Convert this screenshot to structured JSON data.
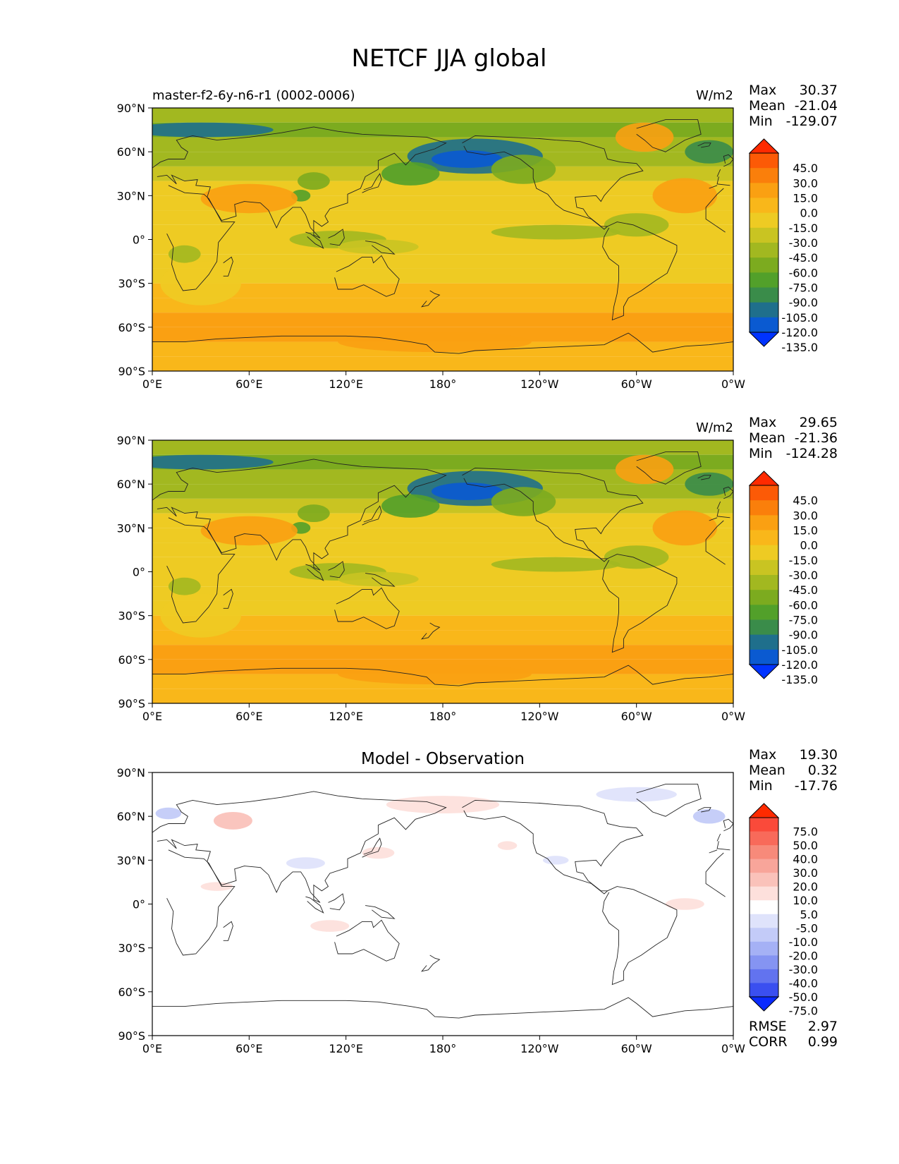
{
  "title": "NETCF JJA global",
  "chart_data": [
    {
      "type": "heatmap",
      "subtitle_left": "master-f2-6y-n6-r1 (0002-0006)",
      "subtitle_center": "",
      "units": "W/m2",
      "stats": [
        {
          "label": "Max",
          "value": "30.37"
        },
        {
          "label": "Mean",
          "value": "-21.04"
        },
        {
          "label": "Min",
          "value": "-129.07"
        }
      ],
      "colorbar": {
        "levels": [
          "45.0",
          "30.0",
          "15.0",
          "0.0",
          "-15.0",
          "-30.0",
          "-45.0",
          "-60.0",
          "-75.0",
          "-90.0",
          "-105.0",
          "-120.0",
          "-135.0"
        ],
        "colors": [
          "#ff2a00",
          "#fc5a06",
          "#fa7f0b",
          "#faa012",
          "#f9b71a",
          "#eecb23",
          "#c9c422",
          "#a2b820",
          "#7cab1f",
          "#52a02a",
          "#3a8c4a",
          "#1f6f8c",
          "#0a5ad1",
          "#0033ff"
        ]
      },
      "x_ticks": [
        "0°E",
        "60°E",
        "120°E",
        "180°",
        "120°W",
        "60°W",
        "0°W"
      ],
      "y_ticks": [
        "90°N",
        "60°N",
        "30°N",
        "0°",
        "30°S",
        "60°S",
        "90°S"
      ],
      "zonal_mean_profile": {
        "lat": [
          90,
          80,
          70,
          60,
          50,
          40,
          30,
          20,
          10,
          0,
          -10,
          -20,
          -30,
          -40,
          -50,
          -60,
          -70,
          -80,
          -90
        ],
        "value": [
          -40,
          -75,
          -60,
          -50,
          -55,
          -25,
          -15,
          -20,
          -30,
          -30,
          -20,
          -15,
          -20,
          -10,
          0,
          5,
          -5,
          -10,
          -15
        ]
      }
    },
    {
      "type": "heatmap",
      "subtitle_left": "",
      "subtitle_center": "",
      "units": "W/m2",
      "stats": [
        {
          "label": "Max",
          "value": "29.65"
        },
        {
          "label": "Mean",
          "value": "-21.36"
        },
        {
          "label": "Min",
          "value": "-124.28"
        }
      ],
      "colorbar": {
        "levels": [
          "45.0",
          "30.0",
          "15.0",
          "0.0",
          "-15.0",
          "-30.0",
          "-45.0",
          "-60.0",
          "-75.0",
          "-90.0",
          "-105.0",
          "-120.0",
          "-135.0"
        ],
        "colors": [
          "#ff2a00",
          "#fc5a06",
          "#fa7f0b",
          "#faa012",
          "#f9b71a",
          "#eecb23",
          "#c9c422",
          "#a2b820",
          "#7cab1f",
          "#52a02a",
          "#3a8c4a",
          "#1f6f8c",
          "#0a5ad1",
          "#0033ff"
        ]
      },
      "x_ticks": [
        "0°E",
        "60°E",
        "120°E",
        "180°",
        "120°W",
        "60°W",
        "0°W"
      ],
      "y_ticks": [
        "90°N",
        "60°N",
        "30°N",
        "0°",
        "30°S",
        "60°S",
        "90°S"
      ],
      "zonal_mean_profile": {
        "lat": [
          90,
          80,
          70,
          60,
          50,
          40,
          30,
          20,
          10,
          0,
          -10,
          -20,
          -30,
          -40,
          -50,
          -60,
          -70,
          -80,
          -90
        ],
        "value": [
          -40,
          -75,
          -60,
          -50,
          -55,
          -25,
          -15,
          -20,
          -30,
          -30,
          -20,
          -15,
          -20,
          -10,
          0,
          5,
          -5,
          -10,
          -15
        ]
      }
    },
    {
      "type": "heatmap",
      "subtitle_left": "",
      "subtitle_center": "Model - Observation",
      "units": "",
      "stats": [
        {
          "label": "Max",
          "value": "19.30"
        },
        {
          "label": "Mean",
          "value": "0.32"
        },
        {
          "label": "Min",
          "value": "-17.76"
        }
      ],
      "colorbar": {
        "levels": [
          "75.0",
          "50.0",
          "40.0",
          "30.0",
          "20.0",
          "10.0",
          "5.0",
          "-5.0",
          "-10.0",
          "-20.0",
          "-30.0",
          "-40.0",
          "-50.0",
          "-75.0"
        ],
        "colors": [
          "#ff2a00",
          "#fa4a3a",
          "#f86a5a",
          "#f78a7a",
          "#f8a59a",
          "#fac2ba",
          "#fde0dc",
          "#ffffff",
          "#dfe3fb",
          "#c3cbf8",
          "#a5b1f5",
          "#8594f2",
          "#6273ef",
          "#3a4ff0",
          "#0a2aff"
        ]
      },
      "x_ticks": [
        "0°E",
        "60°E",
        "120°E",
        "180°",
        "120°W",
        "60°W",
        "0°W"
      ],
      "y_ticks": [
        "90°N",
        "60°N",
        "30°N",
        "0°",
        "30°S",
        "60°S",
        "90°S"
      ],
      "metrics": [
        {
          "label": "RMSE",
          "value": "2.97"
        },
        {
          "label": "CORR",
          "value": "0.99"
        }
      ]
    }
  ]
}
